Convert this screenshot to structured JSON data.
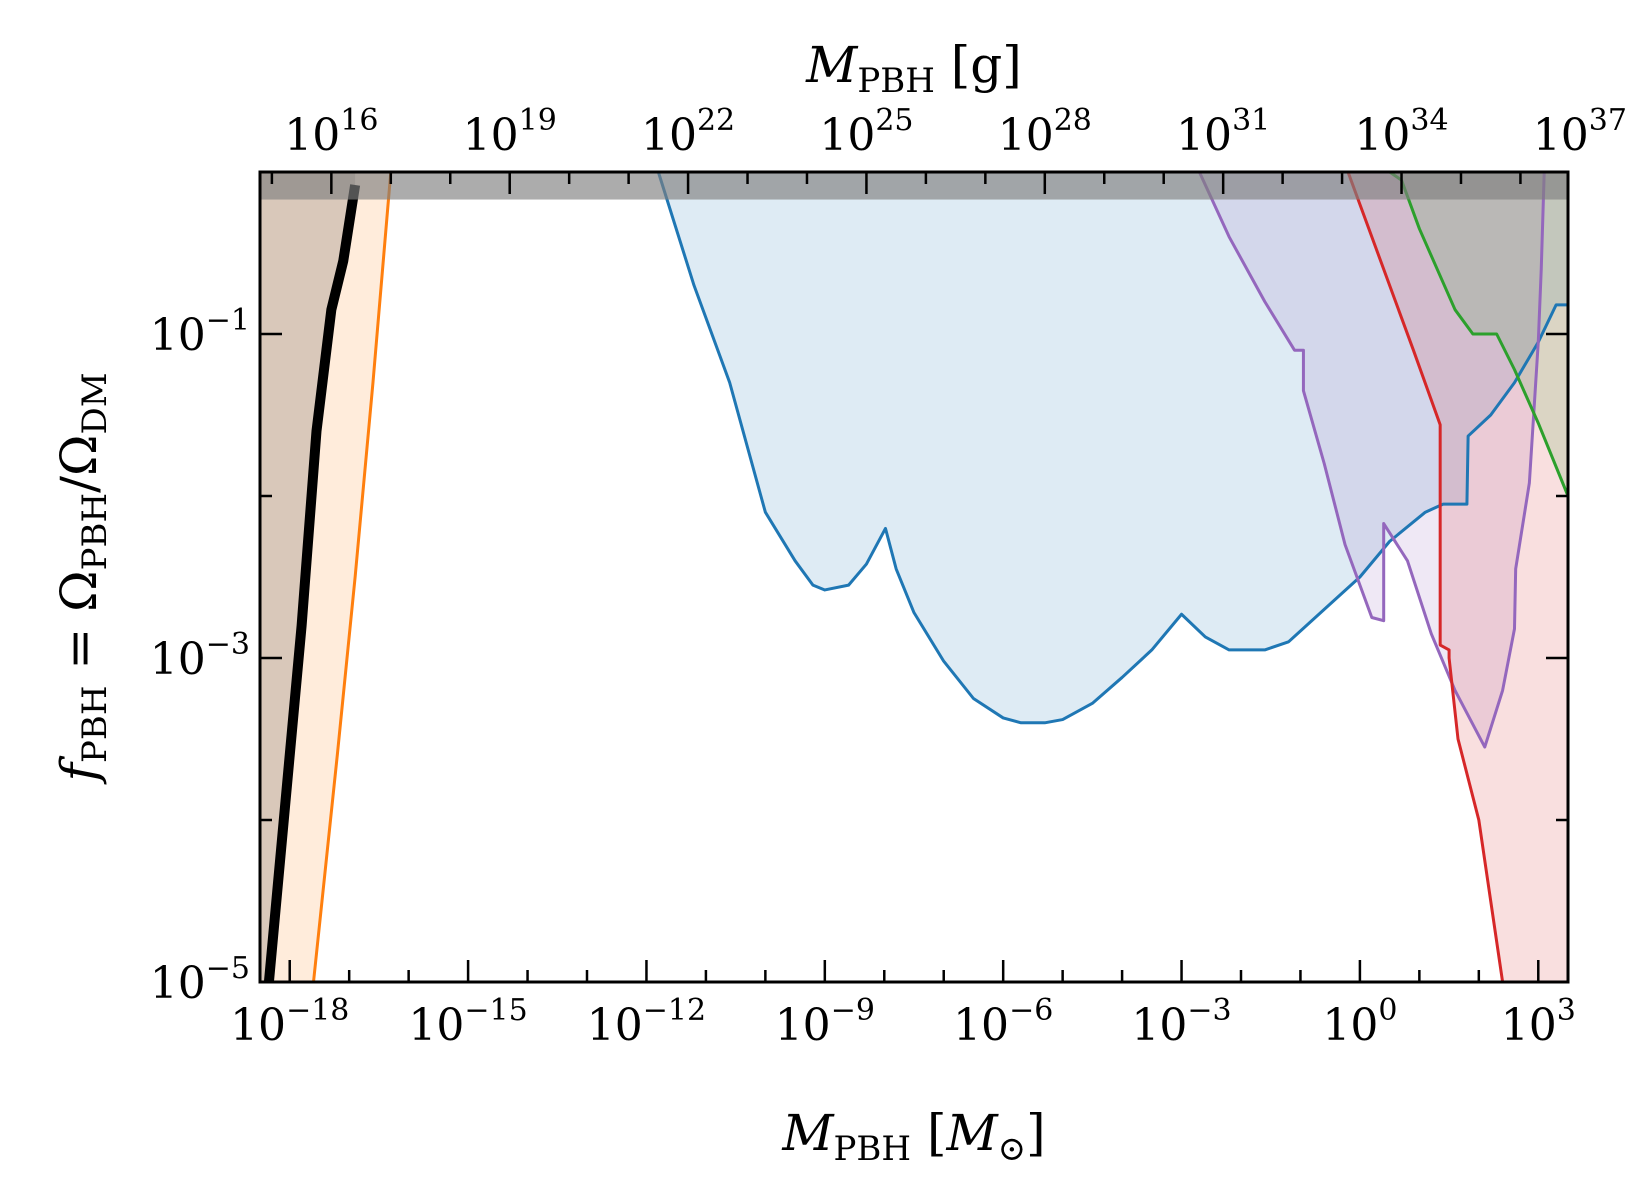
{
  "chart_data": {
    "type": "area",
    "xlabel": "M_PBH [M_⊙]",
    "x2label": "M_PBH [g]",
    "ylabel": "f_PBH = Ω_PBH/Ω_DM",
    "xscale": "log",
    "yscale": "log",
    "xlim_log10": [
      -18.5,
      3.5
    ],
    "ylim_log10": [
      -5,
      0
    ],
    "x_ticks": [
      "10^-18",
      "10^-15",
      "10^-12",
      "10^-9",
      "10^-6",
      "10^-3",
      "10^0",
      "10^3"
    ],
    "x2_ticks": [
      "10^16",
      "10^19",
      "10^22",
      "10^25",
      "10^28",
      "10^31",
      "10^34",
      "10^37"
    ],
    "y_ticks": [
      "10^-5",
      "10^-3",
      "10^-1"
    ],
    "top_band": {
      "ylim_log10": [
        -0.17,
        0
      ],
      "color": "#808080"
    },
    "series": [
      {
        "color": "#ff7f0e",
        "fill": "#ff7f0e",
        "fill_opacity": 0.15,
        "stroke_width": 3,
        "points_log10": [
          [
            -17.6,
            -5
          ],
          [
            -17.2,
            -3.6
          ],
          [
            -16.9,
            -2.5
          ],
          [
            -16.6,
            -1.3
          ],
          [
            -16.3,
            0
          ]
        ],
        "fill_mode": "left"
      },
      {
        "color": "#1f77b4",
        "fill": "#1f77b4",
        "fill_opacity": 0.15,
        "stroke_width": 3,
        "points_log10": [
          [
            -11.8,
            0
          ],
          [
            -11.2,
            -0.7
          ],
          [
            -10.6,
            -1.3
          ],
          [
            -10.0,
            -2.1
          ],
          [
            -9.5,
            -2.4
          ],
          [
            -9.2,
            -2.55
          ],
          [
            -9.0,
            -2.58
          ],
          [
            -8.6,
            -2.55
          ],
          [
            -8.3,
            -2.42
          ],
          [
            -7.98,
            -2.2
          ],
          [
            -7.8,
            -2.45
          ],
          [
            -7.5,
            -2.72
          ],
          [
            -7.0,
            -3.02
          ],
          [
            -6.5,
            -3.25
          ],
          [
            -6.0,
            -3.37
          ],
          [
            -5.7,
            -3.4
          ],
          [
            -5.3,
            -3.4
          ],
          [
            -5.0,
            -3.38
          ],
          [
            -4.5,
            -3.28
          ],
          [
            -4.0,
            -3.12
          ],
          [
            -3.5,
            -2.95
          ],
          [
            -3.0,
            -2.73
          ],
          [
            -2.6,
            -2.87
          ],
          [
            -2.2,
            -2.95
          ],
          [
            -1.6,
            -2.95
          ],
          [
            -1.2,
            -2.9
          ],
          [
            -0.6,
            -2.7
          ],
          [
            0.0,
            -2.5
          ],
          [
            0.5,
            -2.28
          ],
          [
            1.1,
            -2.1
          ],
          [
            1.4,
            -2.05
          ],
          [
            1.8,
            -2.05
          ],
          [
            1.82,
            -1.63
          ],
          [
            2.2,
            -1.5
          ],
          [
            2.6,
            -1.3
          ],
          [
            3.0,
            -1.05
          ],
          [
            3.3,
            -0.82
          ],
          [
            3.5,
            -0.82
          ]
        ],
        "fill_mode": "above"
      },
      {
        "color": "#9467bd",
        "fill": "#9467bd",
        "fill_opacity": 0.15,
        "stroke_width": 3,
        "points_log10": [
          [
            -2.7,
            0
          ],
          [
            -2.2,
            -0.4
          ],
          [
            -1.6,
            -0.8
          ],
          [
            -1.1,
            -1.1
          ],
          [
            -0.95,
            -1.1
          ],
          [
            -0.95,
            -1.35
          ],
          [
            -0.6,
            -1.8
          ],
          [
            -0.25,
            -2.3
          ],
          [
            0.2,
            -2.75
          ],
          [
            0.4,
            -2.77
          ],
          [
            0.4,
            -2.17
          ],
          [
            0.8,
            -2.4
          ],
          [
            1.2,
            -2.85
          ],
          [
            1.6,
            -3.2
          ],
          [
            2.1,
            -3.55
          ],
          [
            2.4,
            -3.2
          ],
          [
            2.6,
            -2.82
          ],
          [
            2.62,
            -2.45
          ],
          [
            2.85,
            -1.92
          ],
          [
            3.0,
            -1.05
          ],
          [
            3.05,
            -0.6
          ],
          [
            3.1,
            0
          ]
        ],
        "fill_mode": "above"
      },
      {
        "color": "#d62728",
        "fill": "#d62728",
        "fill_opacity": 0.15,
        "stroke_width": 3,
        "points_log10": [
          [
            -0.2,
            0
          ],
          [
            0.3,
            -0.5
          ],
          [
            0.9,
            -1.1
          ],
          [
            1.35,
            -1.56
          ],
          [
            1.35,
            -2.92
          ],
          [
            1.5,
            -2.95
          ],
          [
            1.5,
            -3.0
          ],
          [
            1.65,
            -3.5
          ],
          [
            2.0,
            -4.0
          ],
          [
            2.2,
            -4.5
          ],
          [
            2.4,
            -5
          ]
        ],
        "fill_mode": "right"
      },
      {
        "color": "#2ca02c",
        "fill": "#2ca02c",
        "fill_opacity": 0.15,
        "stroke_width": 3,
        "points_log10": [
          [
            0.5,
            0
          ],
          [
            0.7,
            -0.05
          ],
          [
            1.0,
            -0.35
          ],
          [
            1.3,
            -0.6
          ],
          [
            1.6,
            -0.85
          ],
          [
            1.9,
            -1.0
          ],
          [
            2.3,
            -1.0
          ],
          [
            2.6,
            -1.22
          ],
          [
            3.0,
            -1.55
          ],
          [
            3.5,
            -2.0
          ]
        ],
        "fill_mode": "above"
      },
      {
        "color": "#000000",
        "fill": "#000000",
        "fill_opacity": 0.15,
        "stroke_width": 10,
        "points_log10": [
          [
            -18.35,
            -5
          ],
          [
            -18.1,
            -4.0
          ],
          [
            -17.8,
            -2.8
          ],
          [
            -17.55,
            -1.6
          ],
          [
            -17.3,
            -0.85
          ],
          [
            -17.1,
            -0.55
          ],
          [
            -16.9,
            -0.08
          ]
        ],
        "fill_mode": "left"
      }
    ]
  }
}
